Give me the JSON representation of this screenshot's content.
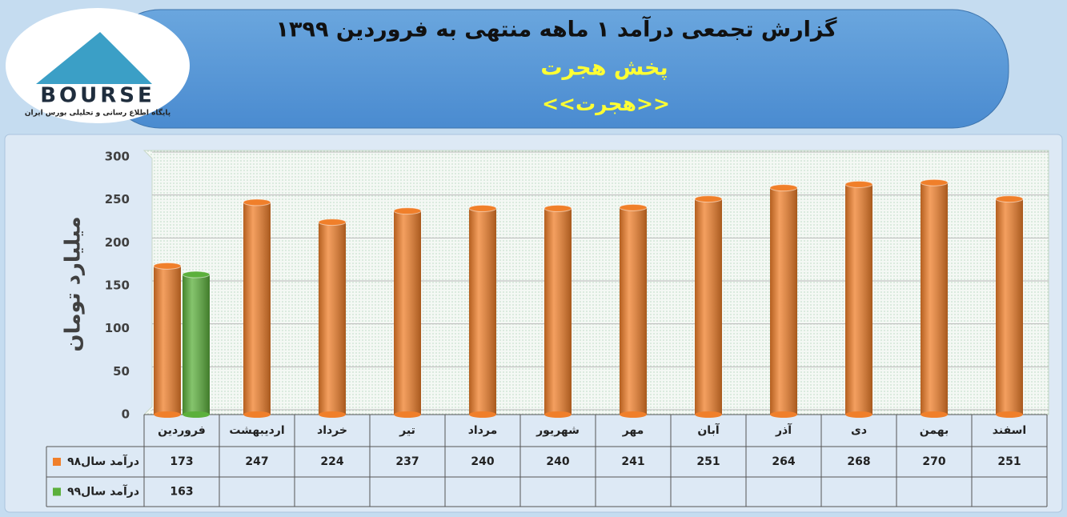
{
  "logo": {
    "name": "BOURSE",
    "tagline": "پایگاه اطلاع رسانی و تحلیلی بورس ایران"
  },
  "chart_data": {
    "type": "bar",
    "title": "گزارش تجمعی درآمد ۱ ماهه منتهی به فروردین ۱۳۹۹",
    "subtitle": "پخش هجرت",
    "symbol": "<<هجرت>>",
    "y_label": "میلیارد تومان",
    "categories": [
      "فروردین",
      "اردیبهشت",
      "خرداد",
      "تیر",
      "مرداد",
      "شهریور",
      "مهر",
      "آبان",
      "آذر",
      "دی",
      "بهمن",
      "اسفند"
    ],
    "series": [
      {
        "name": "درآمد سال۹۸",
        "color": "#f07f2a",
        "values": [
          173,
          247,
          224,
          237,
          240,
          240,
          241,
          251,
          264,
          268,
          270,
          251
        ]
      },
      {
        "name": "درآمد سال۹۹",
        "color": "#5cb03c",
        "values": [
          163,
          null,
          null,
          null,
          null,
          null,
          null,
          null,
          null,
          null,
          null,
          null
        ]
      }
    ],
    "ylim": [
      0,
      300
    ],
    "yticks": [
      0,
      50,
      100,
      150,
      200,
      250,
      300
    ],
    "grid": true
  }
}
